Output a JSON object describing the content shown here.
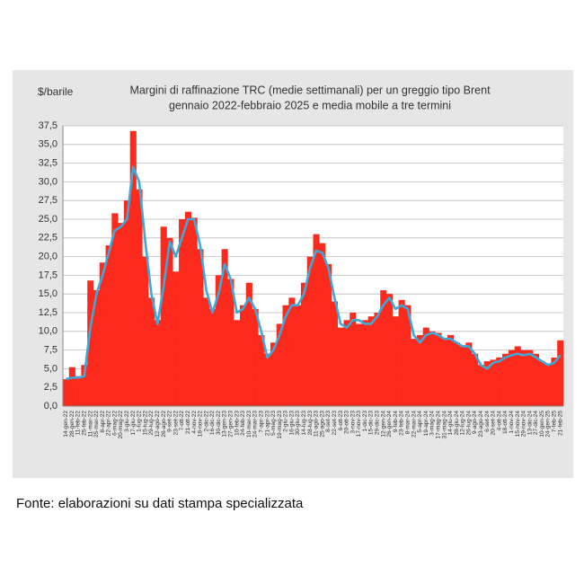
{
  "chart_data": {
    "type": "bar",
    "title": "Margini di raffinazione TRC (medie settimanali) per un greggio tipo Brent",
    "subtitle": "gennaio 2022-febbraio 2025 e media mobile a tre termini",
    "y_label": "$/barile",
    "source": "Fonte: elaborazioni su dati stampa specializzata",
    "categories": [
      "14-gen-22",
      "28-gen-22",
      "11-feb-22",
      "25-feb-22",
      "11-mar-22",
      "25-mar-22",
      "8-apr-22",
      "22-apr-22",
      "6-mag-22",
      "20-mag-22",
      "3-giu-22",
      "17-giu-22",
      "1-lug-22",
      "15-lug-22",
      "29-lug-22",
      "12-ago-22",
      "26-ago-22",
      "9-set-22",
      "23-set-22",
      "7-ott-22",
      "21-ott-22",
      "4-nov-22",
      "18-nov-22",
      "2-dic-22",
      "16-dic-22",
      "30-dic-22",
      "13-gen-23",
      "27-gen-23",
      "10-feb-23",
      "24-feb-23",
      "10-mar-23",
      "24-mar-23",
      "7-apr-23",
      "21-apr-23",
      "5-mag-23",
      "19-mag-23",
      "2-giu-23",
      "16-giu-23",
      "30-giu-23",
      "14-lug-23",
      "28-lug-23",
      "11-ago-23",
      "25-ago-23",
      "8-set-23",
      "22-set-23",
      "6-ott-23",
      "20-ott-23",
      "3-nov-23",
      "17-nov-23",
      "1-dic-23",
      "15-dic-23",
      "29-dic-23",
      "12-gen-24",
      "26-gen-24",
      "9-feb-24",
      "23-feb-24",
      "8-mar-24",
      "22-mar-24",
      "5-apr-24",
      "19-apr-24",
      "3-mag-24",
      "17-mag-24",
      "31-mag-24",
      "14-giu-24",
      "28-giu-24",
      "12-lug-24",
      "26-lug-24",
      "9-ago-24",
      "23-ago-24",
      "6-set-24",
      "20-set-24",
      "4-ott-24",
      "18-ott-24",
      "1-nov-24",
      "15-nov-24",
      "29-nov-24",
      "13-dic-24",
      "27-dic-24",
      "10-gen-25",
      "24-gen-25",
      "7-feb-25",
      "21-feb-25"
    ],
    "series": [
      {
        "type": "bar",
        "color": "#fb2a1c",
        "values": [
          3.6,
          5.2,
          4.0,
          5.5,
          16.8,
          15.5,
          19.2,
          21.5,
          25.8,
          24.5,
          27.5,
          36.8,
          29.0,
          20.0,
          14.5,
          11.5,
          24.0,
          22.5,
          18.0,
          25.0,
          26.0,
          25.2,
          21.0,
          14.5,
          13.0,
          17.5,
          21.0,
          17.0,
          11.5,
          13.5,
          16.5,
          13.0,
          9.5,
          7.0,
          8.5,
          11.0,
          13.5,
          14.5,
          13.5,
          16.5,
          20.0,
          23.0,
          21.8,
          19.0,
          14.0,
          10.5,
          11.5,
          12.5,
          11.0,
          11.5,
          12.0,
          12.5,
          15.5,
          15.0,
          12.0,
          14.2,
          13.5,
          9.0,
          9.5,
          10.5,
          10.0,
          9.8,
          9.0,
          9.5,
          8.5,
          8.0,
          8.5,
          7.0,
          5.5,
          6.0,
          6.2,
          6.5,
          7.0,
          7.5,
          8.0,
          7.5,
          7.5,
          7.0,
          6.0,
          5.5,
          6.5,
          8.8
        ]
      },
      {
        "type": "line",
        "color": "#3ea9d6",
        "values": [
          3.6,
          3.8,
          3.8,
          4.0,
          10.5,
          15.0,
          17.5,
          20.5,
          23.5,
          24.0,
          25.0,
          32.0,
          30.0,
          22.0,
          15.0,
          11.0,
          16.0,
          22.0,
          20.0,
          22.5,
          25.0,
          25.0,
          21.5,
          15.5,
          12.5,
          15.0,
          19.0,
          17.0,
          12.5,
          13.0,
          14.5,
          13.0,
          10.0,
          6.5,
          7.5,
          9.5,
          12.0,
          13.5,
          13.5,
          15.0,
          18.5,
          20.8,
          20.5,
          18.5,
          14.5,
          11.0,
          10.5,
          11.5,
          11.5,
          11.0,
          11.0,
          12.0,
          13.5,
          14.5,
          13.0,
          13.5,
          13.0,
          9.5,
          8.5,
          9.5,
          9.8,
          9.5,
          9.0,
          9.0,
          8.5,
          8.0,
          8.0,
          7.0,
          5.5,
          5.0,
          5.8,
          6.0,
          6.5,
          6.8,
          7.0,
          6.8,
          7.0,
          6.5,
          6.0,
          5.5,
          5.8,
          6.8
        ]
      }
    ],
    "ylim": [
      0,
      37.5
    ],
    "yticks": [
      {
        "value": 0,
        "label": "0,0"
      },
      {
        "value": 2.5,
        "label": "2,5"
      },
      {
        "value": 5,
        "label": "5,0"
      },
      {
        "value": 7.5,
        "label": "7,5"
      },
      {
        "value": 10,
        "label": "10,0"
      },
      {
        "value": 12.5,
        "label": "12,5"
      },
      {
        "value": 15,
        "label": "15,0"
      },
      {
        "value": 17.5,
        "label": "17,5"
      },
      {
        "value": 20,
        "label": "20,0"
      },
      {
        "value": 22.5,
        "label": "22,5"
      },
      {
        "value": 25,
        "label": "25,0"
      },
      {
        "value": 27.5,
        "label": "27,5"
      },
      {
        "value": 30,
        "label": "30,0"
      },
      {
        "value": 32.5,
        "label": "32,5"
      },
      {
        "value": 35,
        "label": "35,0"
      },
      {
        "value": 37.5,
        "label": "37,5"
      }
    ],
    "grid": true
  }
}
